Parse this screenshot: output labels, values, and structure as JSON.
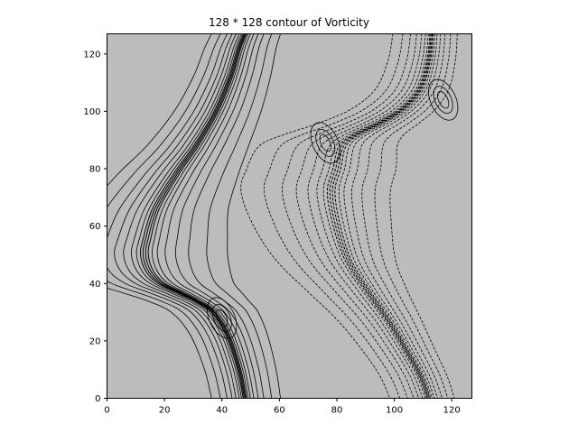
{
  "chart_data": {
    "type": "contour",
    "title": "128 * 128 contour of Vorticity",
    "xlabel": "",
    "ylabel": "",
    "xlim": [
      0,
      127
    ],
    "ylim": [
      0,
      127
    ],
    "xticks": [
      0,
      20,
      40,
      60,
      80,
      100,
      120
    ],
    "yticks": [
      0,
      20,
      40,
      60,
      80,
      100,
      120
    ],
    "grid": false,
    "background_color": "#bcbcbc",
    "line_color": "#000000",
    "positive_line_style": "solid",
    "negative_line_style": "dashed",
    "features": [
      {
        "kind": "positive-front",
        "path_x": [
          48,
          46,
          43,
          38,
          31,
          24,
          17,
          14,
          13,
          15,
          19,
          25,
          31,
          37,
          42,
          46,
          48
        ],
        "path_y": [
          127,
          122,
          112,
          100,
          88,
          78,
          66,
          56,
          50,
          44,
          40,
          37,
          34,
          30,
          22,
          10,
          0
        ]
      },
      {
        "kind": "negative-front",
        "path_x": [
          113,
          112,
          109,
          103,
          95,
          87,
          82,
          80,
          78,
          80,
          84,
          91,
          98,
          104,
          109,
          112
        ],
        "path_y": [
          127,
          118,
          108,
          101,
          96,
          92,
          88,
          80,
          72,
          60,
          48,
          37,
          27,
          17,
          8,
          0
        ]
      },
      {
        "kind": "positive-vortex",
        "x": 76,
        "y": 89
      },
      {
        "kind": "positive-vortex",
        "x": 117,
        "y": 104
      },
      {
        "kind": "positive-vortex",
        "x": 40,
        "y": 28
      }
    ]
  }
}
